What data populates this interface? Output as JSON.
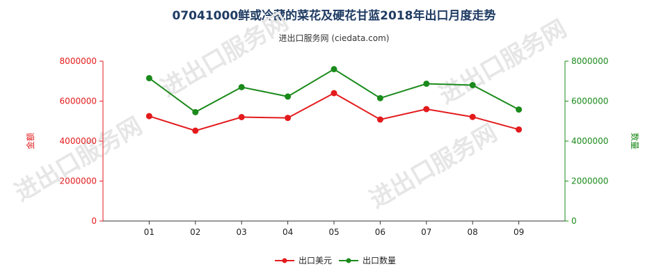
{
  "title": "07041000鲜或冷藏的菜花及硬花甘蓝2018年出口月度走势",
  "subtitle": "进出口服务网 (ciedata.com)",
  "watermark": "进出口服务网",
  "colors": {
    "red": "#e31a1c",
    "green": "#1a8a1a",
    "axis": "#333333"
  },
  "chart_data": {
    "type": "line",
    "categories": [
      "01",
      "02",
      "03",
      "04",
      "05",
      "06",
      "07",
      "08",
      "09"
    ],
    "ylim_left": [
      0,
      8000000
    ],
    "ylim_right": [
      0,
      8000000
    ],
    "yticks_left": [
      "0",
      "2000000",
      "4000000",
      "6000000",
      "8000000"
    ],
    "yticks_right": [
      "0",
      "2000000",
      "4000000",
      "6000000",
      "8000000"
    ],
    "ylabel_left": "金额",
    "ylabel_right": "数量",
    "grid": false,
    "legend_position": "bottom",
    "series": [
      {
        "name": "出口美元",
        "axis": "left",
        "color": "#e31a1c",
        "values": [
          5250000,
          4520000,
          5200000,
          5160000,
          6400000,
          5080000,
          5600000,
          5210000,
          4580000
        ]
      },
      {
        "name": "出口数量",
        "axis": "right",
        "color": "#1a8a1a",
        "values": [
          7150000,
          5450000,
          6700000,
          6230000,
          7600000,
          6150000,
          6870000,
          6800000,
          5580000
        ]
      }
    ]
  }
}
